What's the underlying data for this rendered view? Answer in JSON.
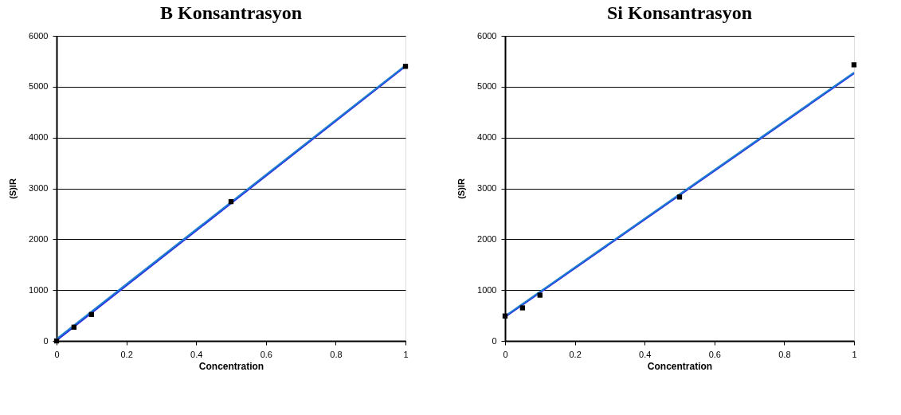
{
  "chart_data": [
    {
      "type": "scatter",
      "title": "B Konsantrasyon",
      "xlabel": "Concentration",
      "ylabel": "(S)IR",
      "xlim": [
        0,
        1
      ],
      "ylim": [
        0,
        6000
      ],
      "xticks": [
        0,
        0.2,
        0.4,
        0.6,
        0.8,
        1
      ],
      "yticks": [
        0,
        1000,
        2000,
        3000,
        4000,
        5000,
        6000
      ],
      "grid": "y",
      "series": [
        {
          "type": "line",
          "color": "#2a2ae0",
          "x": [
            0,
            1
          ],
          "values": [
            10,
            5400
          ]
        },
        {
          "type": "line",
          "color": "#1e7fd0",
          "x": [
            0,
            1
          ],
          "values": [
            40,
            5420
          ]
        },
        {
          "color": "#000000",
          "marker": "square",
          "x": [
            0,
            0.05,
            0.1,
            0.5,
            1
          ],
          "values": [
            0,
            270,
            520,
            2740,
            5400
          ]
        }
      ]
    },
    {
      "type": "scatter",
      "title": "Si Konsantrasyon",
      "xlabel": "Concentration",
      "ylabel": "(S)IR",
      "xlim": [
        0,
        1
      ],
      "ylim": [
        0,
        6000
      ],
      "xticks": [
        0,
        0.2,
        0.4,
        0.6,
        0.8,
        1
      ],
      "yticks": [
        0,
        1000,
        2000,
        3000,
        4000,
        5000,
        6000
      ],
      "grid": "y",
      "series": [
        {
          "type": "line",
          "color": "#2a2ae0",
          "x": [
            0,
            1
          ],
          "values": [
            470,
            5260
          ]
        },
        {
          "type": "line",
          "color": "#1e7fd0",
          "x": [
            0,
            1
          ],
          "values": [
            490,
            5280
          ]
        },
        {
          "color": "#000000",
          "marker": "square",
          "x": [
            0,
            0.05,
            0.1,
            0.5,
            1
          ],
          "values": [
            490,
            650,
            900,
            2830,
            5430
          ]
        }
      ]
    }
  ]
}
